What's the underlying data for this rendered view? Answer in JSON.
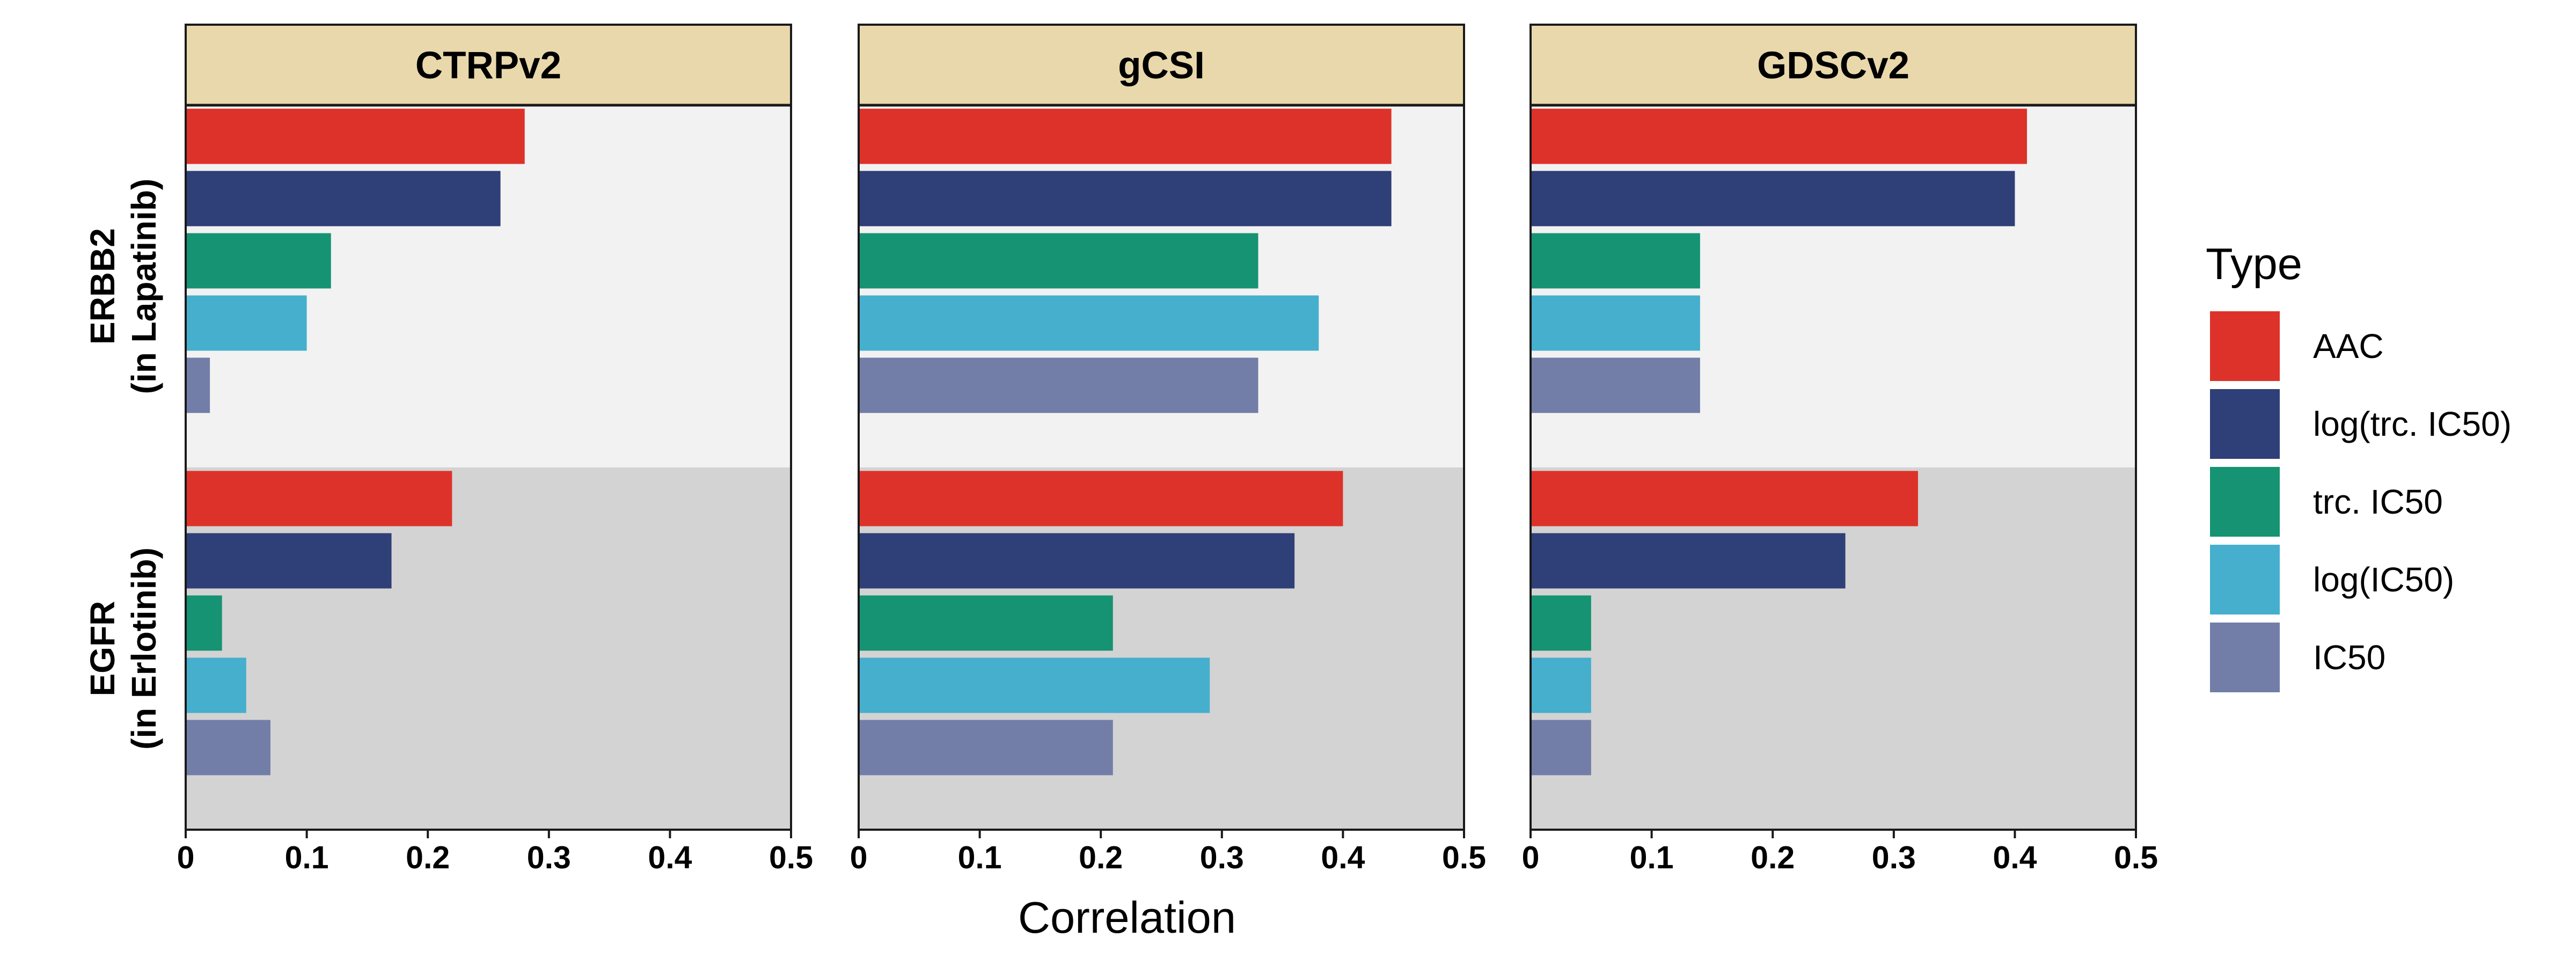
{
  "chart_data": {
    "type": "bar",
    "orientation": "horizontal",
    "xlabel": "Correlation",
    "xlim": [
      0,
      0.5
    ],
    "xticks": [
      "0",
      "0.1",
      "0.2",
      "0.3",
      "0.4",
      "0.5"
    ],
    "facets": [
      "CTRPv2",
      "gCSI",
      "GDSCv2"
    ],
    "rows": [
      {
        "label_line1": "ERBB2",
        "label_line2": "(in Lapatinib)",
        "background": "#f2f2f2"
      },
      {
        "label_line1": "EGFR",
        "label_line2": "(in Erlotinib)",
        "background": "#d3d3d3"
      }
    ],
    "legend": {
      "title": "Type",
      "position": "right"
    },
    "series": [
      {
        "name": "AAC",
        "color": "#dd3229"
      },
      {
        "name": "log(trc. IC50)",
        "color": "#2f3f77"
      },
      {
        "name": "trc. IC50",
        "color": "#159373"
      },
      {
        "name": "log(IC50)",
        "color": "#45afcd"
      },
      {
        "name": "IC50",
        "color": "#727ea8"
      }
    ],
    "values": {
      "CTRPv2": {
        "ERBB2": [
          0.28,
          0.26,
          0.12,
          0.1,
          0.02
        ],
        "EGFR": [
          0.22,
          0.17,
          0.03,
          0.05,
          0.07
        ]
      },
      "gCSI": {
        "ERBB2": [
          0.44,
          0.44,
          0.33,
          0.38,
          0.33
        ],
        "EGFR": [
          0.4,
          0.36,
          0.21,
          0.29,
          0.21
        ]
      },
      "GDSCv2": {
        "ERBB2": [
          0.41,
          0.4,
          0.14,
          0.14,
          0.14
        ],
        "EGFR": [
          0.32,
          0.26,
          0.05,
          0.05,
          0.05
        ]
      }
    }
  }
}
